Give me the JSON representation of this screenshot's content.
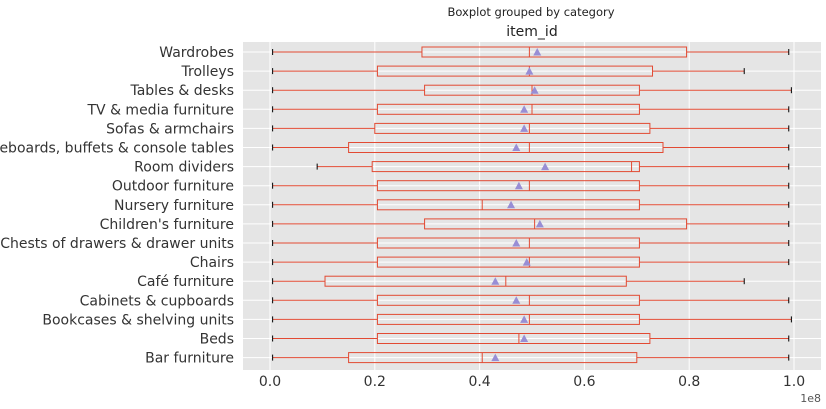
{
  "chart_data": {
    "type": "boxplot",
    "orientation": "horizontal",
    "suptitle": "Boxplot grouped by category",
    "title": "item_id",
    "x_offset_label": "1e8",
    "xlim": [
      -0.05,
      1.05
    ],
    "xticks": [
      0.0,
      0.2,
      0.4,
      0.6,
      0.8,
      1.0
    ],
    "xtick_labels": [
      "0.0",
      "0.2",
      "0.4",
      "0.6",
      "0.8",
      "1.0"
    ],
    "grid": true,
    "colors": {
      "background": "#e5e5e5",
      "grid": "#ffffff",
      "box": "#e24a33",
      "median": "#e24a33",
      "mean_marker": "#988ed5",
      "whisker": "#e24a33",
      "cap": "#000000"
    },
    "categories": [
      "Wardrobes",
      "Trolleys",
      "Tables & desks",
      "TV & media furniture",
      "Sofas & armchairs",
      "Sideboards, buffets & console tables",
      "Room dividers",
      "Outdoor furniture",
      "Nursery furniture",
      "Children's furniture",
      "Chests of drawers & drawer units",
      "Chairs",
      "Café furniture",
      "Cabinets & cupboards",
      "Bookcases & shelving units",
      "Beds",
      "Bar furniture"
    ],
    "boxes": [
      {
        "min": 0.005,
        "q1": 0.29,
        "median": 0.495,
        "q3": 0.795,
        "max": 0.99,
        "mean": 0.51
      },
      {
        "min": 0.005,
        "q1": 0.205,
        "median": 0.495,
        "q3": 0.73,
        "max": 0.905,
        "mean": 0.495
      },
      {
        "min": 0.005,
        "q1": 0.295,
        "median": 0.5,
        "q3": 0.705,
        "max": 0.995,
        "mean": 0.505
      },
      {
        "min": 0.005,
        "q1": 0.205,
        "median": 0.5,
        "q3": 0.705,
        "max": 0.99,
        "mean": 0.485
      },
      {
        "min": 0.005,
        "q1": 0.2,
        "median": 0.495,
        "q3": 0.725,
        "max": 0.99,
        "mean": 0.485
      },
      {
        "min": 0.005,
        "q1": 0.15,
        "median": 0.495,
        "q3": 0.75,
        "max": 0.99,
        "mean": 0.47
      },
      {
        "min": 0.09,
        "q1": 0.195,
        "median": 0.69,
        "q3": 0.705,
        "max": 0.99,
        "mean": 0.525
      },
      {
        "min": 0.005,
        "q1": 0.205,
        "median": 0.495,
        "q3": 0.705,
        "max": 0.99,
        "mean": 0.475
      },
      {
        "min": 0.005,
        "q1": 0.205,
        "median": 0.405,
        "q3": 0.705,
        "max": 0.99,
        "mean": 0.46
      },
      {
        "min": 0.005,
        "q1": 0.295,
        "median": 0.505,
        "q3": 0.795,
        "max": 0.99,
        "mean": 0.515
      },
      {
        "min": 0.005,
        "q1": 0.205,
        "median": 0.495,
        "q3": 0.705,
        "max": 0.99,
        "mean": 0.47
      },
      {
        "min": 0.005,
        "q1": 0.205,
        "median": 0.495,
        "q3": 0.705,
        "max": 0.99,
        "mean": 0.49
      },
      {
        "min": 0.005,
        "q1": 0.105,
        "median": 0.45,
        "q3": 0.68,
        "max": 0.905,
        "mean": 0.43
      },
      {
        "min": 0.005,
        "q1": 0.205,
        "median": 0.495,
        "q3": 0.705,
        "max": 0.99,
        "mean": 0.47
      },
      {
        "min": 0.005,
        "q1": 0.205,
        "median": 0.495,
        "q3": 0.705,
        "max": 0.995,
        "mean": 0.485
      },
      {
        "min": 0.005,
        "q1": 0.205,
        "median": 0.475,
        "q3": 0.725,
        "max": 0.99,
        "mean": 0.485
      },
      {
        "min": 0.005,
        "q1": 0.15,
        "median": 0.405,
        "q3": 0.7,
        "max": 0.99,
        "mean": 0.43
      }
    ]
  }
}
